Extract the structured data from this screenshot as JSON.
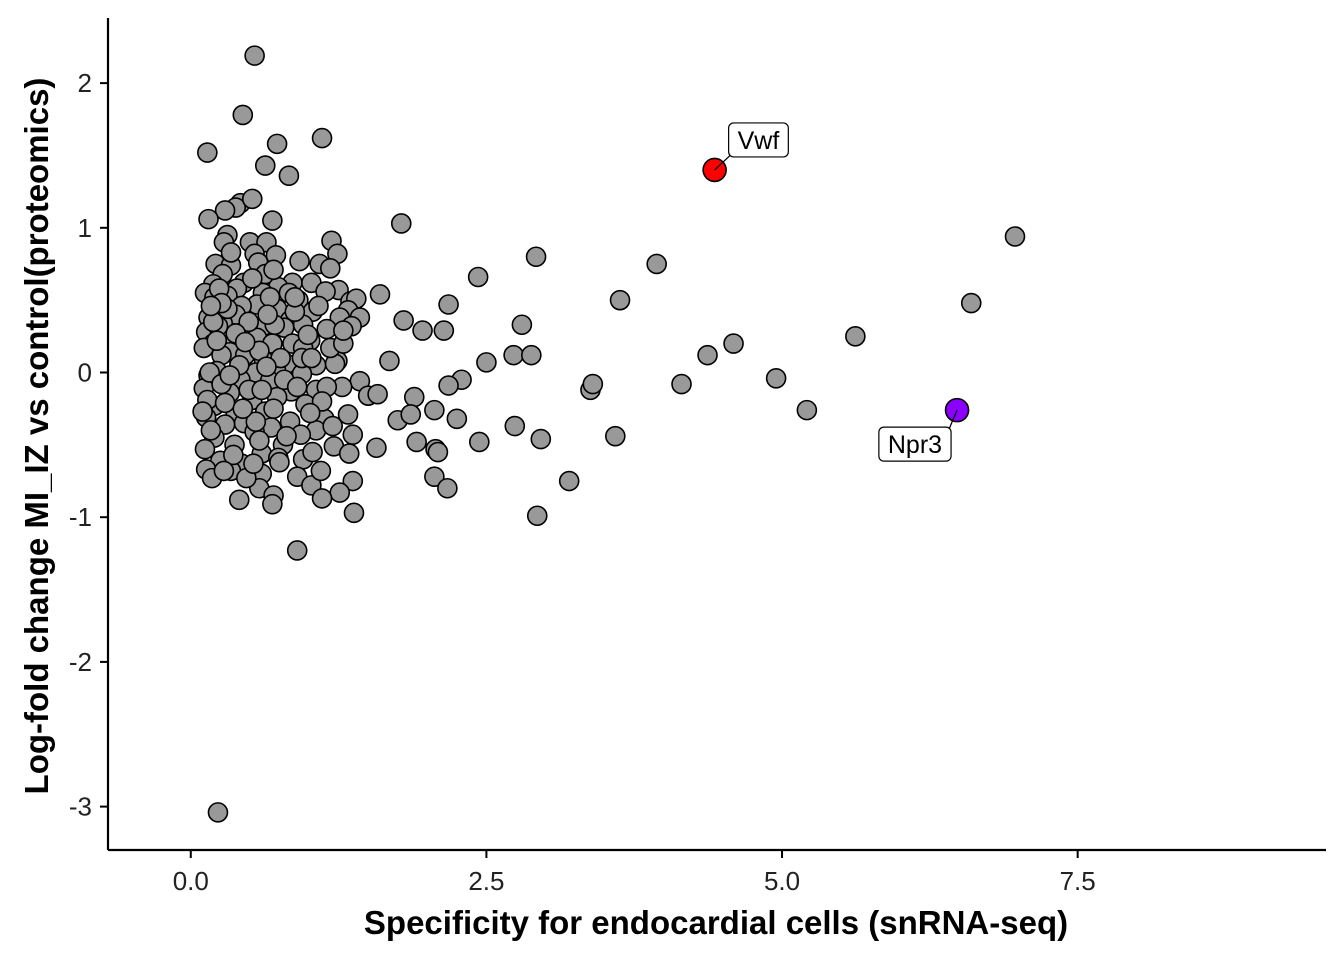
{
  "chart_data": {
    "type": "scatter",
    "title": "",
    "xlabel": "Specificity for endocardial cells (snRNA-seq)",
    "ylabel": "Log-fold change MI_IZ vs control(proteomics)",
    "xlim": [
      -0.7,
      9.6
    ],
    "ylim": [
      -3.3,
      2.45
    ],
    "x_ticks": [
      0.0,
      2.5,
      5.0,
      7.5
    ],
    "x_tick_labels": [
      "0.0",
      "2.5",
      "5.0",
      "7.5"
    ],
    "y_ticks": [
      -3,
      -2,
      -1,
      0,
      1,
      2
    ],
    "y_tick_labels": [
      "-3",
      "-2",
      "-1",
      "0",
      "1",
      "2"
    ],
    "grid": false,
    "colors": {
      "default": "#999999",
      "Vwf": "#ff0000",
      "Npr3": "#8b00ff"
    },
    "highlighted": [
      {
        "label": "Vwf",
        "x": 4.43,
        "y": 1.4,
        "color": "#ff0000"
      },
      {
        "label": "Npr3",
        "x": 6.48,
        "y": -0.26,
        "color": "#8b00ff"
      }
    ],
    "points": [
      [
        0.54,
        2.19
      ],
      [
        0.44,
        1.78
      ],
      [
        1.11,
        1.62
      ],
      [
        0.73,
        1.58
      ],
      [
        0.14,
        1.52
      ],
      [
        0.63,
        1.43
      ],
      [
        0.83,
        1.36
      ],
      [
        0.42,
        1.17
      ],
      [
        0.38,
        1.14
      ],
      [
        0.52,
        1.2
      ],
      [
        0.29,
        1.12
      ],
      [
        0.15,
        1.06
      ],
      [
        0.69,
        1.05
      ],
      [
        1.78,
        1.03
      ],
      [
        0.31,
        0.95
      ],
      [
        0.5,
        0.9
      ],
      [
        0.64,
        0.9
      ],
      [
        0.28,
        0.9
      ],
      [
        1.19,
        0.91
      ],
      [
        0.72,
        0.81
      ],
      [
        0.54,
        0.82
      ],
      [
        1.24,
        0.82
      ],
      [
        2.92,
        0.8
      ],
      [
        6.97,
        0.94
      ],
      [
        3.94,
        0.75
      ],
      [
        0.21,
        0.75
      ],
      [
        0.34,
        0.74
      ],
      [
        0.57,
        0.76
      ],
      [
        0.92,
        0.77
      ],
      [
        1.09,
        0.75
      ],
      [
        1.18,
        0.72
      ],
      [
        0.63,
        0.68
      ],
      [
        0.27,
        0.68
      ],
      [
        0.45,
        0.62
      ],
      [
        0.86,
        0.62
      ],
      [
        1.02,
        0.62
      ],
      [
        2.43,
        0.66
      ],
      [
        0.74,
        0.59
      ],
      [
        0.19,
        0.61
      ],
      [
        0.39,
        0.58
      ],
      [
        1.25,
        0.57
      ],
      [
        0.61,
        0.55
      ],
      [
        0.91,
        0.5
      ],
      [
        1.14,
        0.56
      ],
      [
        0.12,
        0.55
      ],
      [
        1.6,
        0.54
      ],
      [
        3.63,
        0.5
      ],
      [
        0.31,
        0.53
      ],
      [
        0.56,
        0.47
      ],
      [
        0.43,
        0.46
      ],
      [
        1.35,
        0.49
      ],
      [
        1.4,
        0.51
      ],
      [
        1.33,
        0.43
      ],
      [
        2.18,
        0.47
      ],
      [
        6.6,
        0.48
      ],
      [
        0.2,
        0.52
      ],
      [
        0.73,
        0.44
      ],
      [
        1.03,
        0.42
      ],
      [
        0.15,
        0.38
      ],
      [
        0.38,
        0.4
      ],
      [
        0.84,
        0.36
      ],
      [
        1.26,
        0.38
      ],
      [
        1.43,
        0.38
      ],
      [
        1.8,
        0.36
      ],
      [
        0.27,
        0.34
      ],
      [
        0.61,
        0.32
      ],
      [
        0.95,
        0.33
      ],
      [
        1.15,
        0.3
      ],
      [
        2.8,
        0.33
      ],
      [
        0.48,
        0.3
      ],
      [
        0.79,
        0.31
      ],
      [
        1.36,
        0.32
      ],
      [
        0.13,
        0.28
      ],
      [
        0.23,
        0.32
      ],
      [
        1.96,
        0.29
      ],
      [
        2.14,
        0.29
      ],
      [
        0.56,
        0.24
      ],
      [
        0.36,
        0.22
      ],
      [
        0.69,
        0.2
      ],
      [
        1.01,
        0.22
      ],
      [
        0.19,
        0.2
      ],
      [
        0.86,
        0.2
      ],
      [
        5.62,
        0.25
      ],
      [
        0.11,
        0.17
      ],
      [
        0.33,
        0.14
      ],
      [
        0.95,
        0.17
      ],
      [
        1.24,
        0.08
      ],
      [
        0.46,
        0.12
      ],
      [
        4.59,
        0.2
      ],
      [
        4.37,
        0.12
      ],
      [
        2.73,
        0.12
      ],
      [
        2.88,
        0.12
      ],
      [
        1.68,
        0.08
      ],
      [
        2.5,
        0.07
      ],
      [
        0.26,
        0.12
      ],
      [
        0.62,
        0.08
      ],
      [
        0.81,
        0.06
      ],
      [
        1.06,
        0.05
      ],
      [
        0.22,
        0.01
      ],
      [
        0.55,
        0.0
      ],
      [
        0.72,
        0.02
      ],
      [
        0.15,
        -0.02
      ],
      [
        0.94,
        -0.01
      ],
      [
        1.22,
        0.06
      ],
      [
        0.42,
        -0.05
      ],
      [
        0.67,
        -0.06
      ],
      [
        4.95,
        -0.04
      ],
      [
        2.29,
        -0.05
      ],
      [
        2.18,
        -0.09
      ],
      [
        3.38,
        -0.12
      ],
      [
        3.4,
        -0.08
      ],
      [
        4.15,
        -0.08
      ],
      [
        1.43,
        -0.06
      ],
      [
        1.28,
        -0.1
      ],
      [
        1.06,
        -0.12
      ],
      [
        0.11,
        -0.11
      ],
      [
        0.33,
        -0.14
      ],
      [
        0.85,
        -0.13
      ],
      [
        1.15,
        -0.1
      ],
      [
        0.52,
        -0.19
      ],
      [
        0.73,
        -0.17
      ],
      [
        1.89,
        -0.17
      ],
      [
        1.5,
        -0.16
      ],
      [
        1.58,
        -0.15
      ],
      [
        0.2,
        -0.23
      ],
      [
        0.97,
        -0.22
      ],
      [
        0.63,
        -0.27
      ],
      [
        0.38,
        -0.28
      ],
      [
        2.06,
        -0.26
      ],
      [
        5.21,
        -0.26
      ],
      [
        1.33,
        -0.29
      ],
      [
        1.75,
        -0.33
      ],
      [
        1.86,
        -0.29
      ],
      [
        0.13,
        -0.31
      ],
      [
        0.45,
        -0.35
      ],
      [
        0.84,
        -0.34
      ],
      [
        1.13,
        -0.32
      ],
      [
        0.29,
        -0.36
      ],
      [
        0.68,
        -0.38
      ],
      [
        2.25,
        -0.32
      ],
      [
        2.74,
        -0.37
      ],
      [
        1.06,
        -0.4
      ],
      [
        1.37,
        -0.43
      ],
      [
        0.2,
        -0.45
      ],
      [
        0.54,
        -0.41
      ],
      [
        0.93,
        -0.43
      ],
      [
        1.91,
        -0.48
      ],
      [
        2.96,
        -0.46
      ],
      [
        3.59,
        -0.44
      ],
      [
        2.44,
        -0.48
      ],
      [
        0.37,
        -0.5
      ],
      [
        0.78,
        -0.5
      ],
      [
        1.21,
        -0.51
      ],
      [
        1.57,
        -0.52
      ],
      [
        0.12,
        -0.53
      ],
      [
        2.07,
        -0.53
      ],
      [
        2.09,
        -0.55
      ],
      [
        1.34,
        -0.56
      ],
      [
        0.6,
        -0.56
      ],
      [
        0.95,
        -0.6
      ],
      [
        0.25,
        -0.61
      ],
      [
        0.43,
        -0.63
      ],
      [
        0.74,
        -0.59
      ],
      [
        1.03,
        -0.55
      ],
      [
        0.13,
        -0.67
      ],
      [
        0.34,
        -0.68
      ],
      [
        0.6,
        -0.7
      ],
      [
        0.9,
        -0.72
      ],
      [
        0.18,
        -0.73
      ],
      [
        2.06,
        -0.72
      ],
      [
        3.2,
        -0.75
      ],
      [
        1.37,
        -0.75
      ],
      [
        1.02,
        -0.78
      ],
      [
        0.58,
        -0.8
      ],
      [
        2.17,
        -0.8
      ],
      [
        0.7,
        -0.85
      ],
      [
        1.26,
        -0.83
      ],
      [
        0.41,
        -0.88
      ],
      [
        1.11,
        -0.87
      ],
      [
        0.69,
        -0.91
      ],
      [
        1.38,
        -0.97
      ],
      [
        2.93,
        -0.99
      ],
      [
        0.9,
        -1.23
      ],
      [
        0.23,
        -3.04
      ],
      [
        0.16,
        0.0
      ],
      [
        0.26,
        -0.08
      ],
      [
        0.41,
        0.05
      ],
      [
        0.58,
        0.15
      ],
      [
        0.79,
        -0.05
      ],
      [
        0.94,
        0.1
      ],
      [
        1.11,
        -0.2
      ],
      [
        0.49,
        -0.12
      ],
      [
        0.31,
        0.44
      ],
      [
        0.67,
        0.52
      ],
      [
        0.88,
        0.42
      ],
      [
        0.22,
        0.22
      ],
      [
        0.49,
        0.35
      ],
      [
        0.7,
        -0.25
      ],
      [
        0.36,
        -0.57
      ],
      [
        0.55,
        -0.34
      ],
      [
        0.81,
        -0.44
      ],
      [
        1.18,
        0.17
      ],
      [
        0.14,
        -0.19
      ],
      [
        0.29,
        -0.21
      ],
      [
        0.71,
        0.33
      ],
      [
        1.02,
        0.1
      ],
      [
        0.47,
        -0.73
      ],
      [
        0.65,
        0.4
      ],
      [
        0.17,
        -0.4
      ],
      [
        0.38,
        0.27
      ],
      [
        0.6,
        -0.12
      ],
      [
        0.76,
        0.1
      ],
      [
        0.99,
        0.26
      ],
      [
        1.29,
        0.2
      ],
      [
        0.24,
        0.58
      ],
      [
        0.52,
        0.65
      ],
      [
        0.83,
        0.55
      ],
      [
        1.29,
        0.29
      ],
      [
        0.33,
        -0.02
      ],
      [
        0.44,
        -0.25
      ],
      [
        0.58,
        -0.47
      ],
      [
        1.01,
        -0.28
      ],
      [
        0.19,
        0.35
      ],
      [
        0.9,
        -0.1
      ],
      [
        0.26,
        0.48
      ],
      [
        0.7,
        0.71
      ],
      [
        1.1,
        -0.68
      ],
      [
        0.28,
        -0.68
      ],
      [
        0.75,
        -0.62
      ],
      [
        1.2,
        -0.37
      ],
      [
        0.46,
        0.21
      ],
      [
        0.88,
        0.52
      ],
      [
        1.08,
        0.46
      ],
      [
        0.53,
        -0.63
      ],
      [
        0.17,
        0.46
      ],
      [
        0.64,
        0.04
      ],
      [
        0.34,
        0.83
      ],
      [
        0.1,
        -0.27
      ]
    ]
  }
}
